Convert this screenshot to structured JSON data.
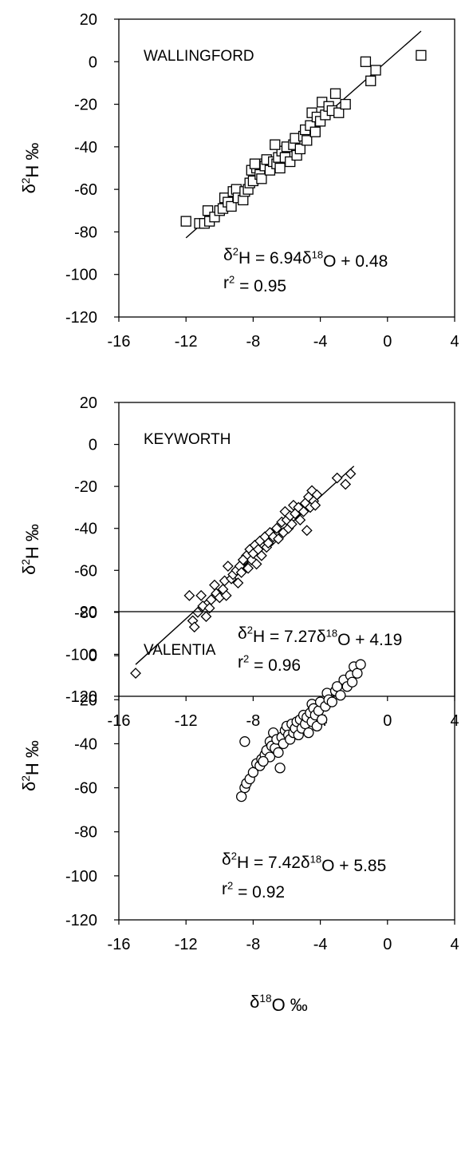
{
  "chart_data": [
    {
      "type": "scatter",
      "panel_label": "WALLINGFORD",
      "marker": "square",
      "ylabel": "δ2H ‰",
      "ylabel_parts": [
        "δ",
        "2",
        "H ‰"
      ],
      "xlim": [
        -16,
        4
      ],
      "ylim": [
        -120,
        20
      ],
      "xticks": [
        -16,
        -12,
        -8,
        -4,
        0,
        4
      ],
      "yticks": [
        20,
        0,
        -20,
        -40,
        -60,
        -80,
        -100,
        -120
      ],
      "grid": false,
      "equation": {
        "text": "δ2H = 6.94δ18O + 0.48",
        "slope": 6.94,
        "intercept": 0.48,
        "parts": [
          "δ",
          "2",
          "H = 6.94δ",
          "18",
          "O + 0.48"
        ]
      },
      "r2": {
        "text": "r2 = 0.95",
        "value": 0.95,
        "parts": [
          "r",
          "2",
          " = 0.95"
        ]
      },
      "fit_line": {
        "x_from": -12,
        "x_to": 2
      },
      "points": [
        [
          -12.0,
          -75
        ],
        [
          -11.2,
          -76
        ],
        [
          -10.9,
          -76
        ],
        [
          -10.6,
          -75
        ],
        [
          -10.7,
          -70
        ],
        [
          -10.3,
          -73
        ],
        [
          -10.0,
          -70
        ],
        [
          -9.8,
          -69
        ],
        [
          -9.7,
          -64
        ],
        [
          -9.5,
          -66
        ],
        [
          -9.3,
          -68
        ],
        [
          -9.2,
          -61
        ],
        [
          -9.0,
          -60
        ],
        [
          -8.9,
          -64
        ],
        [
          -8.6,
          -65
        ],
        [
          -8.5,
          -61
        ],
        [
          -8.3,
          -60
        ],
        [
          -8.2,
          -57
        ],
        [
          -8.0,
          -56
        ],
        [
          -8.1,
          -51
        ],
        [
          -7.8,
          -50
        ],
        [
          -7.6,
          -53
        ],
        [
          -7.7,
          -48
        ],
        [
          -7.5,
          -55
        ],
        [
          -7.3,
          -49
        ],
        [
          -7.2,
          -46
        ],
        [
          -7.0,
          -51
        ],
        [
          -6.8,
          -47
        ],
        [
          -6.6,
          -48
        ],
        [
          -6.5,
          -45
        ],
        [
          -6.4,
          -50
        ],
        [
          -6.3,
          -42
        ],
        [
          -6.1,
          -45
        ],
        [
          -6.0,
          -40
        ],
        [
          -5.8,
          -47
        ],
        [
          -5.6,
          -39
        ],
        [
          -5.5,
          -36
        ],
        [
          -5.4,
          -44
        ],
        [
          -5.2,
          -41
        ],
        [
          -5.0,
          -35
        ],
        [
          -4.9,
          -32
        ],
        [
          -4.8,
          -37
        ],
        [
          -4.6,
          -30
        ],
        [
          -4.5,
          -24
        ],
        [
          -4.3,
          -33
        ],
        [
          -4.2,
          -26
        ],
        [
          -4.0,
          -28
        ],
        [
          -3.9,
          -19
        ],
        [
          -3.7,
          -25
        ],
        [
          -3.5,
          -21
        ],
        [
          -3.3,
          -23
        ],
        [
          -3.1,
          -15
        ],
        [
          -2.9,
          -24
        ],
        [
          -2.5,
          -20
        ],
        [
          -1.3,
          0
        ],
        [
          -1.0,
          -9
        ],
        [
          -0.7,
          -4
        ],
        [
          2.0,
          3
        ],
        [
          -6.7,
          -39
        ],
        [
          -7.9,
          -48
        ]
      ]
    },
    {
      "type": "scatter",
      "panel_label": "KEYWORTH",
      "marker": "diamond",
      "ylabel": "δ2H ‰",
      "ylabel_parts": [
        "δ",
        "2",
        "H ‰"
      ],
      "xlim": [
        -16,
        4
      ],
      "ylim": [
        -120,
        20
      ],
      "xticks": [
        -16,
        -12,
        -8,
        -4,
        0,
        4
      ],
      "yticks": [
        20,
        0,
        -20,
        -40,
        -60,
        -80,
        -100,
        -120
      ],
      "grid": false,
      "equation": {
        "text": "δ2H = 7.27δ18O + 4.19",
        "slope": 7.27,
        "intercept": 4.19,
        "parts": [
          "δ",
          "2",
          "H = 7.27δ",
          "18",
          "O + 4.19"
        ]
      },
      "r2": {
        "text": "r2 = 0.96",
        "value": 0.96,
        "parts": [
          "r",
          "2",
          " = 0.96"
        ]
      },
      "fit_line": {
        "x_from": -15,
        "x_to": -2
      },
      "points": [
        [
          -15.0,
          -109
        ],
        [
          -11.8,
          -72
        ],
        [
          -11.6,
          -84
        ],
        [
          -11.5,
          -87
        ],
        [
          -11.3,
          -80
        ],
        [
          -11.0,
          -77
        ],
        [
          -11.1,
          -72
        ],
        [
          -10.8,
          -82
        ],
        [
          -10.6,
          -78
        ],
        [
          -10.5,
          -74
        ],
        [
          -10.3,
          -67
        ],
        [
          -10.2,
          -71
        ],
        [
          -10.0,
          -73
        ],
        [
          -9.8,
          -69
        ],
        [
          -9.7,
          -65
        ],
        [
          -9.6,
          -72
        ],
        [
          -9.5,
          -58
        ],
        [
          -9.3,
          -64
        ],
        [
          -9.2,
          -62
        ],
        [
          -9.0,
          -60
        ],
        [
          -8.9,
          -66
        ],
        [
          -8.8,
          -58
        ],
        [
          -8.7,
          -61
        ],
        [
          -8.5,
          -55
        ],
        [
          -8.4,
          -53
        ],
        [
          -8.3,
          -59
        ],
        [
          -8.2,
          -50
        ],
        [
          -8.1,
          -55
        ],
        [
          -8.0,
          -52
        ],
        [
          -7.9,
          -48
        ],
        [
          -7.8,
          -57
        ],
        [
          -7.7,
          -50
        ],
        [
          -7.6,
          -46
        ],
        [
          -7.5,
          -53
        ],
        [
          -7.3,
          -44
        ],
        [
          -7.2,
          -49
        ],
        [
          -7.0,
          -42
        ],
        [
          -6.9,
          -46
        ],
        [
          -6.8,
          -44
        ],
        [
          -6.6,
          -40
        ],
        [
          -6.5,
          -45
        ],
        [
          -6.3,
          -37
        ],
        [
          -6.2,
          -42
        ],
        [
          -6.1,
          -32
        ],
        [
          -6.0,
          -36
        ],
        [
          -5.9,
          -40
        ],
        [
          -5.8,
          -34
        ],
        [
          -5.7,
          -38
        ],
        [
          -5.6,
          -29
        ],
        [
          -5.5,
          -33
        ],
        [
          -5.3,
          -30
        ],
        [
          -5.2,
          -36
        ],
        [
          -5.0,
          -32
        ],
        [
          -4.9,
          -28
        ],
        [
          -4.8,
          -41
        ],
        [
          -4.7,
          -25
        ],
        [
          -4.6,
          -30
        ],
        [
          -4.5,
          -22
        ],
        [
          -4.4,
          -27
        ],
        [
          -4.3,
          -29
        ],
        [
          -4.2,
          -24
        ],
        [
          -3.0,
          -16
        ],
        [
          -2.5,
          -19
        ],
        [
          -2.2,
          -14
        ],
        [
          -8.6,
          -55
        ],
        [
          -7.1,
          -47
        ]
      ]
    },
    {
      "type": "scatter",
      "panel_label": "VALENTIA",
      "marker": "circle",
      "ylabel": "δ2H ‰",
      "ylabel_parts": [
        "δ",
        "2",
        "H ‰"
      ],
      "xlabel": "δ18O ‰",
      "xlabel_parts": [
        "δ",
        "18",
        "O ‰"
      ],
      "xlim": [
        -16,
        4
      ],
      "ylim": [
        -120,
        20
      ],
      "xticks": [
        -16,
        -12,
        -8,
        -4,
        0,
        4
      ],
      "yticks": [
        20,
        0,
        -20,
        -40,
        -60,
        -80,
        -100,
        -120
      ],
      "grid": false,
      "equation": {
        "text": "δ2H = 7.42δ18O + 5.85",
        "slope": 7.42,
        "intercept": 5.85,
        "parts": [
          "δ",
          "2",
          "H = 7.42δ",
          "18",
          "O + 5.85"
        ]
      },
      "r2": {
        "text": "r2 = 0.92",
        "value": 0.92,
        "parts": [
          "r",
          "2",
          " = 0.92"
        ]
      },
      "fit_line": {
        "x_from": -8.7,
        "x_to": -1.6
      },
      "points": [
        [
          -8.7,
          -64
        ],
        [
          -8.5,
          -60
        ],
        [
          -8.4,
          -58
        ],
        [
          -8.5,
          -39
        ],
        [
          -8.2,
          -56
        ],
        [
          -8.0,
          -53
        ],
        [
          -7.8,
          -49
        ],
        [
          -7.6,
          -50
        ],
        [
          -7.5,
          -47
        ],
        [
          -7.3,
          -45
        ],
        [
          -7.2,
          -43
        ],
        [
          -7.0,
          -39
        ],
        [
          -7.0,
          -46
        ],
        [
          -6.9,
          -41
        ],
        [
          -6.8,
          -35
        ],
        [
          -6.7,
          -42
        ],
        [
          -6.6,
          -38
        ],
        [
          -6.5,
          -44
        ],
        [
          -6.4,
          -51
        ],
        [
          -6.3,
          -37
        ],
        [
          -6.2,
          -40
        ],
        [
          -6.1,
          -34
        ],
        [
          -6.0,
          -32
        ],
        [
          -5.9,
          -36
        ],
        [
          -5.8,
          -38
        ],
        [
          -5.7,
          -31
        ],
        [
          -5.6,
          -35
        ],
        [
          -5.5,
          -33
        ],
        [
          -5.4,
          -30
        ],
        [
          -5.3,
          -36
        ],
        [
          -5.2,
          -29
        ],
        [
          -5.1,
          -33
        ],
        [
          -5.0,
          -27
        ],
        [
          -4.9,
          -31
        ],
        [
          -4.8,
          -28
        ],
        [
          -4.7,
          -35
        ],
        [
          -4.6,
          -26
        ],
        [
          -4.5,
          -22
        ],
        [
          -4.5,
          -30
        ],
        [
          -4.4,
          -24
        ],
        [
          -4.3,
          -27
        ],
        [
          -4.2,
          -32
        ],
        [
          -4.1,
          -25
        ],
        [
          -4.0,
          -21
        ],
        [
          -3.9,
          -29
        ],
        [
          -3.7,
          -23
        ],
        [
          -3.6,
          -17
        ],
        [
          -3.5,
          -20
        ],
        [
          -3.3,
          -21
        ],
        [
          -3.1,
          -16
        ],
        [
          -3.0,
          -14
        ],
        [
          -2.8,
          -18
        ],
        [
          -2.6,
          -11
        ],
        [
          -2.4,
          -14
        ],
        [
          -2.2,
          -9
        ],
        [
          -2.1,
          -12
        ],
        [
          -2.0,
          -5
        ],
        [
          -1.8,
          -8
        ],
        [
          -1.6,
          -4
        ],
        [
          -7.4,
          -48
        ]
      ]
    }
  ]
}
